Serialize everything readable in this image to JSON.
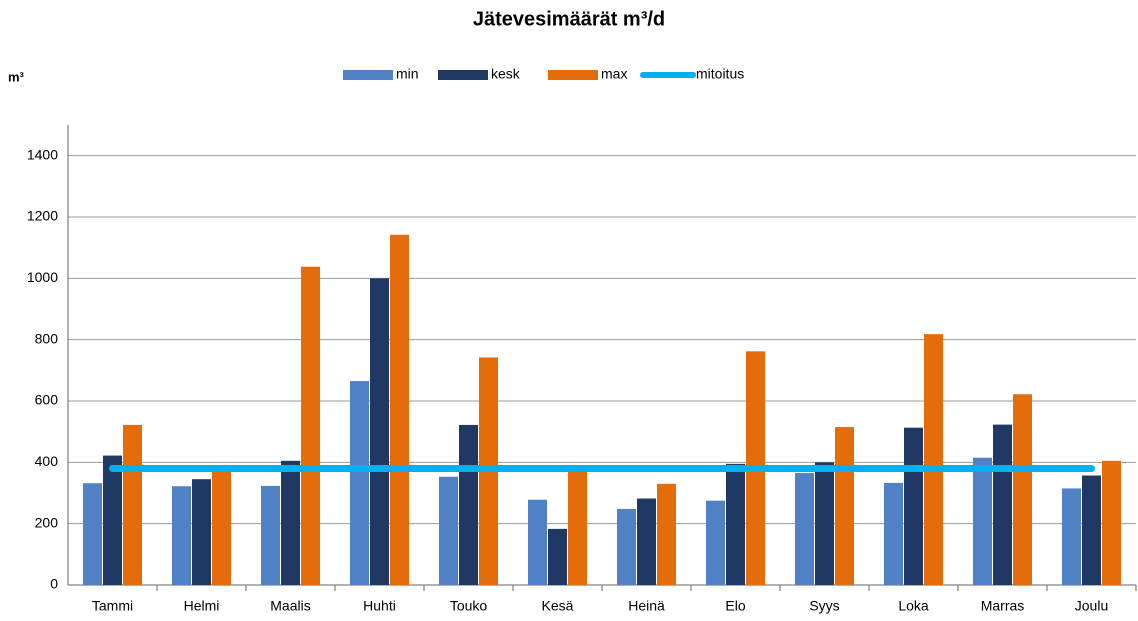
{
  "chart_data": {
    "type": "bar",
    "title": "Jätevesimäärät m³/d",
    "y_label": "m³",
    "categories": [
      "Tammi",
      "Helmi",
      "Maalis",
      "Huhti",
      "Touko",
      "Kesä",
      "Heinä",
      "Elo",
      "Syys",
      "Loka",
      "Marras",
      "Joulu"
    ],
    "series": [
      {
        "name": "min",
        "color": "#4f81c4",
        "type": "bar",
        "values": [
          332,
          322,
          323,
          665,
          353,
          278,
          248,
          275,
          365,
          333,
          415,
          315
        ]
      },
      {
        "name": "kesk",
        "color": "#1f3864",
        "type": "bar",
        "values": [
          422,
          345,
          405,
          1000,
          522,
          183,
          282,
          395,
          400,
          513,
          523,
          357
        ]
      },
      {
        "name": "max",
        "color": "#e46c0a",
        "type": "bar",
        "values": [
          522,
          375,
          1038,
          1142,
          742,
          375,
          330,
          762,
          515,
          818,
          622,
          405
        ]
      },
      {
        "name": "mitoitus",
        "color": "#00b0f0",
        "type": "line",
        "values": [
          380,
          380,
          380,
          380,
          380,
          380,
          380,
          380,
          380,
          380,
          380,
          380
        ]
      }
    ],
    "ylim": [
      0,
      1500
    ],
    "yticks": [
      0,
      200,
      400,
      600,
      800,
      1000,
      1200,
      1400
    ],
    "grid": true,
    "legend": "top"
  }
}
